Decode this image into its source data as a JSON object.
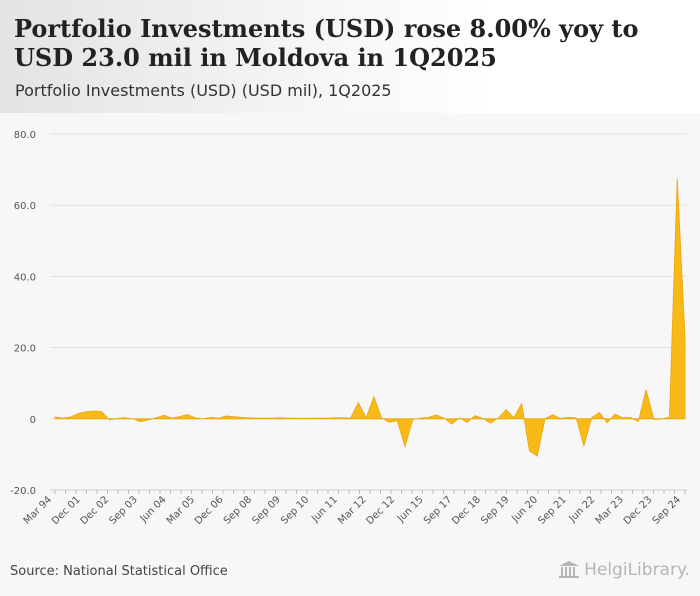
{
  "header": {
    "title": "Portfolio Investments (USD) rose 8.00% yoy to USD 23.0 mil in Moldova in 1Q2025",
    "subtitle": "Portfolio Investments (USD) (USD mil), 1Q2025"
  },
  "footer": {
    "source": "Source: National Statistical Office",
    "logo_text": "HelgiLibrary."
  },
  "colors": {
    "area_fill": "#f9b917",
    "area_stroke": "#e8a70d",
    "grid": "#e2e2e2",
    "axis_text": "#555555"
  },
  "chart_data": {
    "type": "area",
    "title": "Portfolio Investments (USD) (USD mil), 1Q2025",
    "xlabel": "",
    "ylabel": "",
    "ylim": [
      -20,
      80
    ],
    "yticks": [
      80,
      60,
      40,
      20,
      0,
      -20
    ],
    "ytick_labels": [
      "80.0",
      "60.0",
      "40.0",
      "20.0",
      "0",
      "-20.0"
    ],
    "x_range": [
      "Mar 94",
      "Mar 25"
    ],
    "xtick_labels": [
      "Mar 94",
      "Dec 01",
      "Dec 02",
      "Sep 03",
      "Jun 04",
      "Mar 05",
      "Dec 06",
      "Sep 08",
      "Sep 09",
      "Sep 10",
      "Jun 11",
      "Mar 12",
      "Dec 12",
      "Jun 15",
      "Sep 17",
      "Dec 18",
      "Sep 19",
      "Jun 20",
      "Sep 21",
      "Jun 22",
      "Mar 23",
      "Dec 23",
      "Sep 24"
    ],
    "series": [
      {
        "name": "Portfolio Investments (USD)",
        "values": [
          0.5,
          0.2,
          0.5,
          1.5,
          2.0,
          2.2,
          2.0,
          -0.3,
          0.1,
          0.3,
          0.0,
          -0.8,
          -0.3,
          0.3,
          1.0,
          0.2,
          0.6,
          1.2,
          0.3,
          0.0,
          0.4,
          0.2,
          0.8,
          0.6,
          0.4,
          0.3,
          0.2,
          0.2,
          0.2,
          0.3,
          0.2,
          0.2,
          0.1,
          0.2,
          0.2,
          0.2,
          0.3,
          0.3,
          0.2,
          4.5,
          0.3,
          6.2,
          0.2,
          -1.0,
          -0.5,
          -7.8,
          -0.2,
          0.2,
          0.4,
          1.1,
          0.2,
          -1.5,
          0.3,
          -1.0,
          0.9,
          0.1,
          -1.2,
          0.2,
          2.6,
          0.3,
          4.3,
          -9.0,
          -10.5,
          0.0,
          1.2,
          0.1,
          0.4,
          0.3,
          -7.6,
          0.3,
          1.8,
          -1.1,
          1.3,
          0.3,
          0.4,
          -0.8,
          8.2,
          -0.2,
          -0.1,
          0.5,
          67.5,
          23.0
        ]
      }
    ]
  }
}
